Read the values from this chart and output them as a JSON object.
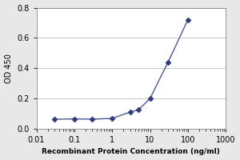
{
  "x": [
    0.03,
    0.1,
    0.3,
    1,
    3,
    5,
    10,
    30,
    100
  ],
  "y": [
    0.062,
    0.065,
    0.063,
    0.068,
    0.11,
    0.125,
    0.2,
    0.44,
    0.72
  ],
  "line_color": "#4A5899",
  "marker_color": "#2E3A7A",
  "marker": "D",
  "marker_size": 3.5,
  "marker_linewidth": 0.5,
  "xlabel": "Recombinant Protein Concentration (ng/ml)",
  "ylabel": "OD 450",
  "xlim": [
    0.01,
    1000
  ],
  "ylim": [
    0,
    0.8
  ],
  "yticks": [
    0,
    0.2,
    0.4,
    0.6,
    0.8
  ],
  "xticks": [
    0.01,
    0.1,
    1,
    10,
    100,
    1000
  ],
  "xtick_labels": [
    "0.01",
    "0.1",
    "1",
    "10",
    "100",
    "1000"
  ],
  "plot_bg_color": "#ffffff",
  "fig_bg_color": "#e8e8e8",
  "grid_color": "#c0c0c0",
  "xlabel_fontsize": 6.5,
  "ylabel_fontsize": 7,
  "tick_fontsize": 7,
  "line_width": 1.0
}
